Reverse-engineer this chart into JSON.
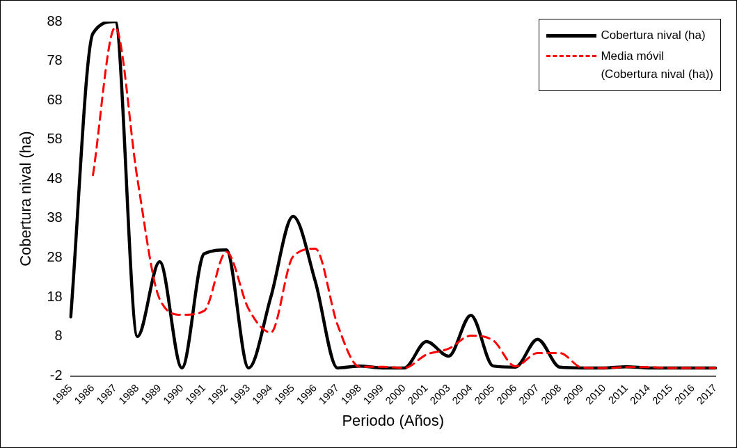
{
  "chart_data": {
    "type": "line",
    "xlabel": "Periodo (Años)",
    "ylabel": "Cobertura nival (ha)",
    "categories": [
      "1985",
      "1986",
      "1987",
      "1988",
      "1989",
      "1990",
      "1991",
      "1992",
      "1993",
      "1994",
      "1995",
      "1996",
      "1997",
      "1998",
      "1999",
      "2000",
      "2001",
      "2003",
      "2004",
      "2005",
      "2006",
      "2007",
      "2008",
      "2009",
      "2010",
      "2011",
      "2014",
      "2015",
      "2016",
      "2017"
    ],
    "series": [
      {
        "name": "Cobertura nival (ha)",
        "color": "#000000",
        "line_style": "solid",
        "values": [
          13,
          85,
          88,
          8,
          27,
          0,
          29,
          30,
          0,
          18,
          38.5,
          22,
          0,
          0.5,
          0,
          0,
          6.7,
          3,
          13.4,
          0.5,
          0.2,
          7.3,
          0.2,
          0,
          0,
          0.3,
          0,
          0,
          0,
          0
        ]
      },
      {
        "name": "Media móvil\n(Cobertura nival (ha))",
        "color": "#ff0000",
        "line_style": "dashed",
        "values": [
          null,
          49,
          86.5,
          48,
          17.5,
          13.5,
          14.5,
          29.5,
          15,
          9,
          28.3,
          30.3,
          11,
          0.3,
          0.3,
          0,
          3.4,
          4.9,
          8.2,
          7,
          0.4,
          3.8,
          3.8,
          0.1,
          0,
          0.2,
          0.2,
          0,
          0,
          0
        ]
      }
    ],
    "ylim": [
      -2,
      88
    ],
    "yticks": [
      -2,
      8,
      18,
      28,
      38,
      48,
      58,
      68,
      78,
      88
    ],
    "grid": false,
    "legend": "top right",
    "marker": "none"
  }
}
